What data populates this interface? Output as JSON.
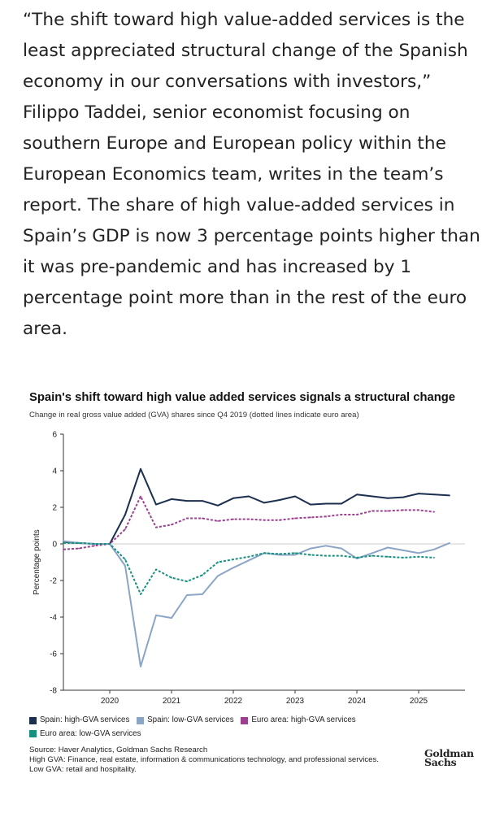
{
  "article": {
    "paragraph": "“The shift toward high value-added services is the least appreciated structural change of the Spanish economy in our conversations with investors,” Filippo Taddei, senior economist focusing on southern Europe and European policy within the European Economics team, writes in the team’s report. The share of high value-added services in Spain’s GDP is now 3 percentage points higher than it was pre-pandemic and has increased by 1 percentage point more than in the rest of the euro area."
  },
  "chart_data": {
    "type": "line",
    "title": "Spain's shift toward high value added services signals a structural change",
    "subtitle": "Change in real gross value added (GVA) shares since Q4 2019 (dotted lines indicate euro area)",
    "xlabel": "",
    "ylabel": "Percentage points",
    "ylim": [
      -8,
      6
    ],
    "xlim": [
      2019.25,
      2025.75
    ],
    "y_ticks": [
      "6",
      "4",
      "2",
      "0",
      "-2",
      "-4",
      "-6",
      "-8"
    ],
    "x_ticks": [
      "2020",
      "2021",
      "2022",
      "2023",
      "2024",
      "2025"
    ],
    "grid": false,
    "legend_position": "bottom",
    "series": [
      {
        "name": "Spain: high-GVA services",
        "color": "#1b2f4e",
        "dash": false,
        "x": [
          2019.25,
          2019.5,
          2019.75,
          2020.0,
          2020.25,
          2020.5,
          2020.75,
          2021.0,
          2021.25,
          2021.5,
          2021.75,
          2022.0,
          2022.25,
          2022.5,
          2022.75,
          2023.0,
          2023.25,
          2023.5,
          2023.75,
          2024.0,
          2024.25,
          2024.5,
          2024.75,
          2025.0,
          2025.25,
          2025.5
        ],
        "values": [
          0.1,
          0.05,
          0.0,
          0.0,
          1.6,
          4.1,
          2.15,
          2.45,
          2.35,
          2.35,
          2.1,
          2.5,
          2.6,
          2.25,
          2.4,
          2.6,
          2.15,
          2.2,
          2.2,
          2.7,
          2.6,
          2.5,
          2.55,
          2.75,
          2.7,
          2.65
        ]
      },
      {
        "name": "Spain: low-GVA services",
        "color": "#8aa5c6",
        "dash": false,
        "x": [
          2019.25,
          2019.5,
          2019.75,
          2020.0,
          2020.25,
          2020.5,
          2020.75,
          2021.0,
          2021.25,
          2021.5,
          2021.75,
          2022.0,
          2022.25,
          2022.5,
          2022.75,
          2023.0,
          2023.25,
          2023.5,
          2023.75,
          2024.0,
          2024.25,
          2024.5,
          2024.75,
          2025.0,
          2025.25,
          2025.5
        ],
        "values": [
          0.15,
          0.05,
          0.0,
          0.0,
          -1.2,
          -6.7,
          -3.9,
          -4.05,
          -2.8,
          -2.75,
          -1.75,
          -1.3,
          -0.9,
          -0.5,
          -0.6,
          -0.6,
          -0.25,
          -0.1,
          -0.25,
          -0.8,
          -0.5,
          -0.2,
          -0.35,
          -0.5,
          -0.3,
          0.05
        ]
      },
      {
        "name": "Euro area: high-GVA services",
        "color": "#9b3f8e",
        "dash": true,
        "x": [
          2019.25,
          2019.5,
          2019.75,
          2020.0,
          2020.25,
          2020.5,
          2020.75,
          2021.0,
          2021.25,
          2021.5,
          2021.75,
          2022.0,
          2022.25,
          2022.5,
          2022.75,
          2023.0,
          2023.25,
          2023.5,
          2023.75,
          2024.0,
          2024.25,
          2024.5,
          2024.75,
          2025.0,
          2025.25
        ],
        "values": [
          -0.3,
          -0.25,
          -0.1,
          0.0,
          0.8,
          2.6,
          0.9,
          1.05,
          1.4,
          1.4,
          1.25,
          1.35,
          1.35,
          1.3,
          1.3,
          1.4,
          1.45,
          1.5,
          1.6,
          1.6,
          1.8,
          1.8,
          1.85,
          1.85,
          1.75
        ]
      },
      {
        "name": "Euro area: low-GVA services",
        "color": "#16907f",
        "dash": true,
        "x": [
          2019.25,
          2019.5,
          2019.75,
          2020.0,
          2020.25,
          2020.5,
          2020.75,
          2021.0,
          2021.25,
          2021.5,
          2021.75,
          2022.0,
          2022.25,
          2022.5,
          2022.75,
          2023.0,
          2023.25,
          2023.5,
          2023.75,
          2024.0,
          2024.25,
          2024.5,
          2024.75,
          2025.0,
          2025.25
        ],
        "values": [
          0.05,
          0.05,
          0.0,
          0.0,
          -0.85,
          -2.75,
          -1.4,
          -1.85,
          -2.05,
          -1.7,
          -1.0,
          -0.85,
          -0.7,
          -0.5,
          -0.55,
          -0.5,
          -0.6,
          -0.65,
          -0.65,
          -0.75,
          -0.65,
          -0.7,
          -0.75,
          -0.7,
          -0.75
        ]
      }
    ]
  },
  "legend": {
    "items": [
      {
        "label": "Spain: high-GVA services",
        "color": "#1b2f4e"
      },
      {
        "label": "Spain: low-GVA services",
        "color": "#8aa5c6"
      },
      {
        "label": "Euro area: high-GVA services",
        "color": "#9b3f8e"
      },
      {
        "label": "Euro area: low-GVA services",
        "color": "#16907f"
      }
    ]
  },
  "notes": {
    "source": "Source: Haver Analytics, Goldman Sachs Research",
    "high": "High GVA: Finance, real estate, information & communications technology, and professional services.",
    "low": "Low GVA: retail and hospitality."
  },
  "logo": {
    "line1": "Goldman",
    "line2": "Sachs"
  }
}
